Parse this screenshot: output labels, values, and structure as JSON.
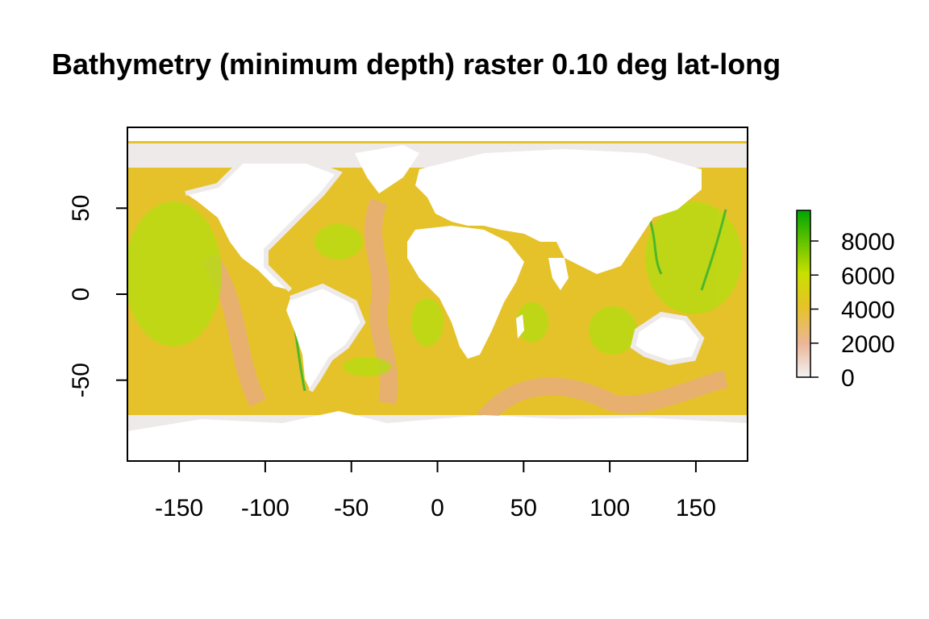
{
  "chart_data": {
    "type": "heatmap",
    "title": "Bathymetry (minimum depth) raster 0.10 deg lat-long",
    "xlabel": "",
    "ylabel": "",
    "xlim": [
      -180,
      180
    ],
    "ylim": [
      -97,
      97
    ],
    "x_ticks": [
      -150,
      -100,
      -50,
      0,
      50,
      100,
      150
    ],
    "y_ticks": [
      -50,
      0,
      50
    ],
    "grid": false,
    "legend": {
      "placement": "right",
      "min": 0,
      "max": 9800,
      "ticks": [
        0,
        2000,
        4000,
        6000,
        8000
      ],
      "colors": [
        "#f2f2f2",
        "#ebb699",
        "#e6c22a",
        "#c9e000",
        "#00a600"
      ]
    },
    "colors": {
      "land": "#ffffff",
      "shelf": "#eeeaea",
      "shallow": "#ebb699",
      "mid": "#e6b25a",
      "deep": "#e4d80f",
      "abyss": "#b6dc12",
      "trench": "#4cb82a"
    }
  }
}
